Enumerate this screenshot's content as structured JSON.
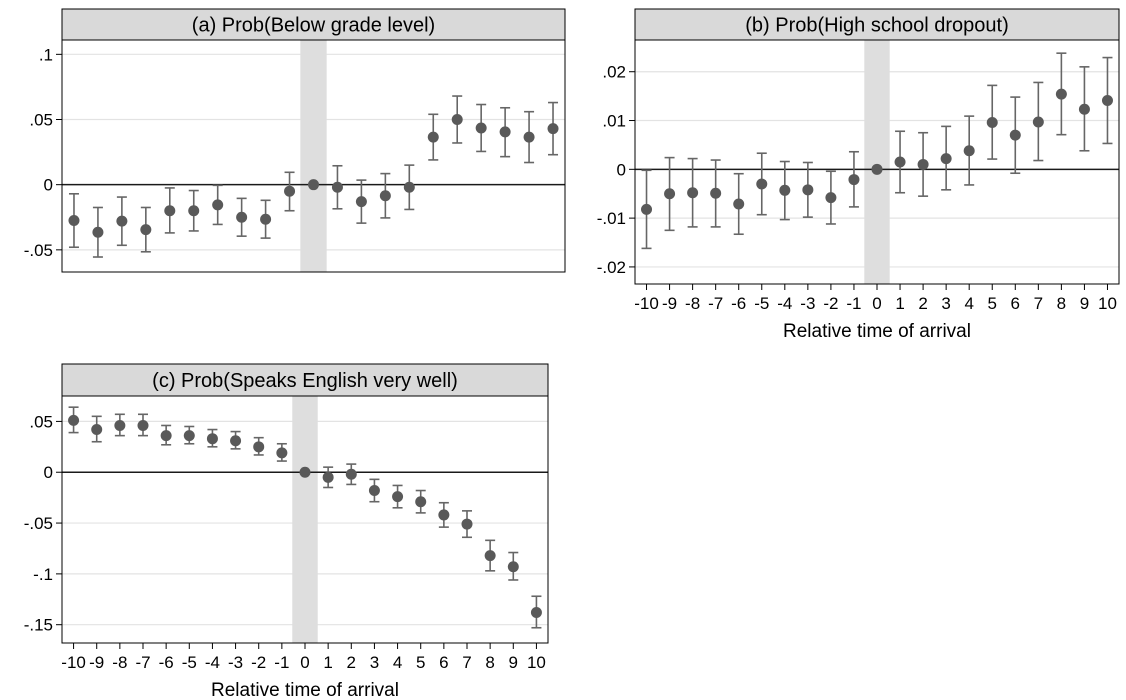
{
  "chart_data": [
    {
      "type": "scatter",
      "title": "(a) Prob(Below grade level)",
      "xlabel": "",
      "x_ticks_visible": false,
      "ylim": [
        -0.067,
        0.111
      ],
      "yticks": [
        -0.05,
        0,
        0.05,
        0.1
      ],
      "ytick_labels": [
        "-.05",
        "0",
        ".05",
        ".1"
      ],
      "grid": true,
      "reference_line_y": 0,
      "shaded_x": 0,
      "series": [
        {
          "x": [
            -10,
            -9,
            -8,
            -7,
            -6,
            -5,
            -4,
            -3,
            -2,
            -1,
            0,
            1,
            2,
            3,
            4,
            5,
            6,
            7,
            8,
            9,
            10
          ],
          "y": [
            -0.0275,
            -0.0365,
            -0.028,
            -0.0345,
            -0.02,
            -0.02,
            -0.0155,
            -0.025,
            -0.0265,
            -0.005,
            0,
            -0.002,
            -0.013,
            -0.0085,
            -0.002,
            0.0365,
            0.05,
            0.0435,
            0.0405,
            0.0365,
            0.043
          ],
          "ci_low": [
            -0.048,
            -0.0555,
            -0.0465,
            -0.0515,
            -0.037,
            -0.0355,
            -0.0305,
            -0.0395,
            -0.041,
            -0.02,
            0,
            -0.0185,
            -0.0295,
            -0.0255,
            -0.019,
            0.019,
            0.032,
            0.0255,
            0.0215,
            0.017,
            0.023
          ],
          "ci_high": [
            -0.007,
            -0.0175,
            -0.0095,
            -0.0175,
            -0.0025,
            -0.0045,
            -0.0005,
            -0.0105,
            -0.012,
            0.0095,
            0,
            0.0145,
            0.0035,
            0.0085,
            0.015,
            0.054,
            0.068,
            0.0615,
            0.059,
            0.056,
            0.063
          ]
        }
      ]
    },
    {
      "type": "scatter",
      "title": "(b) Prob(High school dropout)",
      "xlabel": "Relative time of arrival",
      "x_ticks_visible": true,
      "xticks": [
        -10,
        -9,
        -8,
        -7,
        -6,
        -5,
        -4,
        -3,
        -2,
        -1,
        0,
        1,
        2,
        3,
        4,
        5,
        6,
        7,
        8,
        9,
        10
      ],
      "ylim": [
        -0.0235,
        0.0265
      ],
      "yticks": [
        -0.02,
        -0.01,
        0,
        0.01,
        0.02
      ],
      "ytick_labels": [
        "-.02",
        "-.01",
        "0",
        ".01",
        ".02"
      ],
      "grid": true,
      "reference_line_y": 0,
      "shaded_x": 0,
      "series": [
        {
          "x": [
            -10,
            -9,
            -8,
            -7,
            -6,
            -5,
            -4,
            -3,
            -2,
            -1,
            0,
            1,
            2,
            3,
            4,
            5,
            6,
            7,
            8,
            9,
            10
          ],
          "y": [
            -0.0082,
            -0.005,
            -0.0048,
            -0.0049,
            -0.0071,
            -0.003,
            -0.0043,
            -0.0042,
            -0.0058,
            -0.0021,
            0,
            0.0015,
            0.001,
            0.0022,
            0.0038,
            0.0096,
            0.007,
            0.0097,
            0.0154,
            0.0123,
            0.0141
          ],
          "ci_low": [
            -0.0162,
            -0.0125,
            -0.0118,
            -0.0118,
            -0.0133,
            -0.0093,
            -0.0103,
            -0.0098,
            -0.0112,
            -0.0077,
            0,
            -0.0048,
            -0.0055,
            -0.0042,
            -0.0032,
            0.0021,
            -0.0008,
            0.0018,
            0.0071,
            0.0038,
            0.0053
          ],
          "ci_high": [
            -0.0002,
            0.0024,
            0.0022,
            0.0019,
            -0.0009,
            0.0033,
            0.0016,
            0.0014,
            -0.0004,
            0.0036,
            0,
            0.0078,
            0.0075,
            0.0088,
            0.0109,
            0.0172,
            0.0148,
            0.0178,
            0.0238,
            0.021,
            0.0229
          ]
        }
      ]
    },
    {
      "type": "scatter",
      "title": "(c) Prob(Speaks English very well)",
      "xlabel": "Relative time of arrival",
      "x_ticks_visible": true,
      "xticks": [
        -10,
        -9,
        -8,
        -7,
        -6,
        -5,
        -4,
        -3,
        -2,
        -1,
        0,
        1,
        2,
        3,
        4,
        5,
        6,
        7,
        8,
        9,
        10
      ],
      "ylim": [
        -0.168,
        0.075
      ],
      "yticks": [
        -0.15,
        -0.1,
        -0.05,
        0,
        0.05
      ],
      "ytick_labels": [
        "-.15",
        "-.1",
        "-.05",
        "0",
        ".05"
      ],
      "grid": true,
      "reference_line_y": 0,
      "shaded_x": 0,
      "series": [
        {
          "x": [
            -10,
            -9,
            -8,
            -7,
            -6,
            -5,
            -4,
            -3,
            -2,
            -1,
            0,
            1,
            2,
            3,
            4,
            5,
            6,
            7,
            8,
            9,
            10
          ],
          "y": [
            0.051,
            0.042,
            0.046,
            0.046,
            0.036,
            0.036,
            0.033,
            0.031,
            0.025,
            0.019,
            0,
            -0.005,
            -0.002,
            -0.018,
            -0.024,
            -0.029,
            -0.042,
            -0.051,
            -0.082,
            -0.093,
            -0.138
          ],
          "ci_low": [
            0.039,
            0.03,
            0.036,
            0.036,
            0.027,
            0.028,
            0.025,
            0.023,
            0.017,
            0.011,
            0,
            -0.015,
            -0.012,
            -0.029,
            -0.035,
            -0.04,
            -0.054,
            -0.064,
            -0.097,
            -0.106,
            -0.153
          ],
          "ci_high": [
            0.064,
            0.055,
            0.057,
            0.057,
            0.046,
            0.045,
            0.042,
            0.04,
            0.034,
            0.028,
            0,
            0.005,
            0.008,
            -0.007,
            -0.013,
            -0.018,
            -0.03,
            -0.038,
            -0.067,
            -0.079,
            -0.122
          ]
        }
      ]
    }
  ]
}
